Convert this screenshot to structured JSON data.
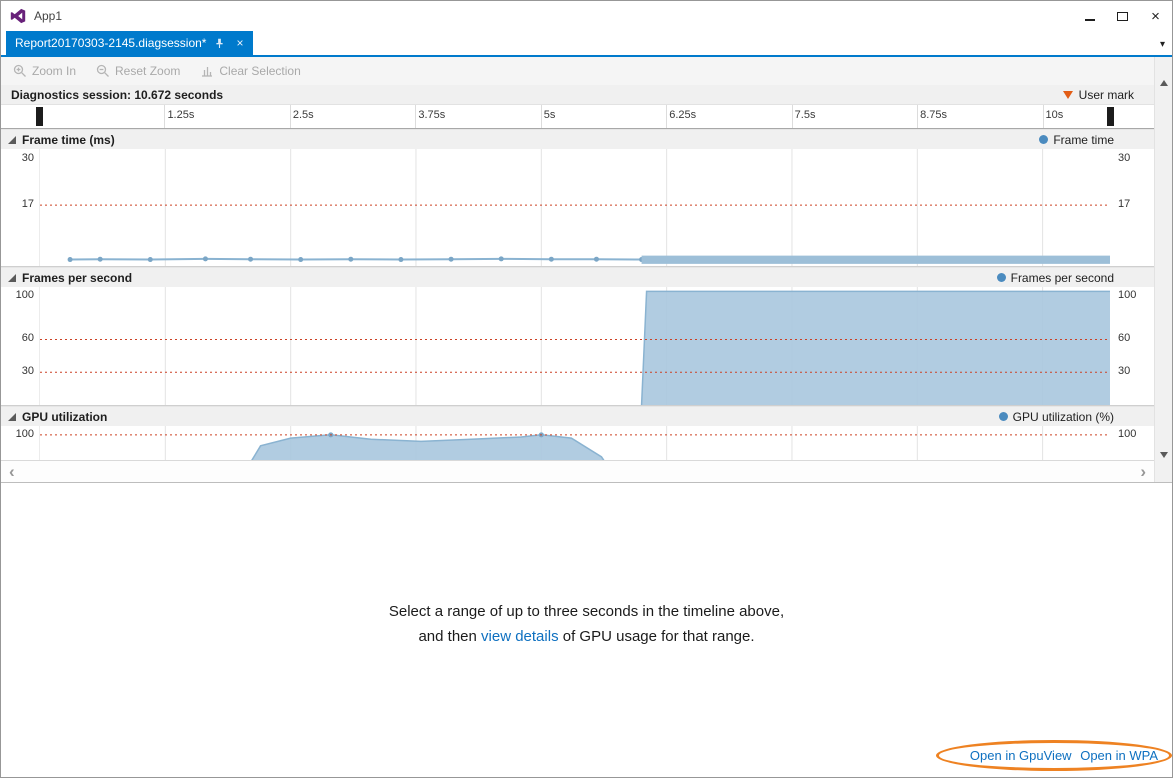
{
  "colors": {
    "tab": "#007acc",
    "link": "#0e70c0",
    "usermark": "#e25d16",
    "annotation": "#ee8222",
    "threshold": "#cc4125",
    "grid": "#e3e3e3",
    "legenddot": "#4b8bbf",
    "logo": "#68217a"
  },
  "window": {
    "title": "App1"
  },
  "tab": {
    "title": "Report20170303-2145.diagsession*"
  },
  "icons": {
    "close": "×",
    "tab_close": "×",
    "tab_dropdown": "▾",
    "scroll_left": "‹",
    "scroll_right": "›"
  },
  "toolbar": {
    "zoom_in": "Zoom In",
    "reset_zoom": "Reset Zoom",
    "clear_selection": "Clear Selection"
  },
  "timeline": {
    "session_label": "Diagnostics session: 10.672 seconds",
    "user_mark_label": "User mark",
    "x_max": 10.672,
    "ticks": [
      {
        "t": 1.25,
        "label": "1.25s"
      },
      {
        "t": 2.5,
        "label": "2.5s"
      },
      {
        "t": 3.75,
        "label": "3.75s"
      },
      {
        "t": 5,
        "label": "5s"
      },
      {
        "t": 6.25,
        "label": "6.25s"
      },
      {
        "t": 7.5,
        "label": "7.5s"
      },
      {
        "t": 8.75,
        "label": "8.75s"
      },
      {
        "t": 10,
        "label": "10s"
      }
    ],
    "session_markers": [
      0,
      10.672
    ]
  },
  "chart_data": [
    {
      "type": "line",
      "title": "Frame time (ms)",
      "legend": "Frame time",
      "ylim": [
        0,
        32.7
      ],
      "yticks": [
        {
          "v": 30,
          "label": "30"
        },
        {
          "v": 17,
          "label": "17"
        }
      ],
      "thresholds": [
        17
      ],
      "series": [
        {
          "name": "Frame time",
          "type": "line",
          "stroke": "#8ab3d1",
          "markers": true,
          "marker_fill": "#7ba6c6",
          "x": [
            0.3,
            0.6,
            1.1,
            1.65,
            2.1,
            2.6,
            3.1,
            3.6,
            4.1,
            4.6,
            5.1,
            5.55,
            6.0
          ],
          "y": [
            1.8,
            1.9,
            1.8,
            2.0,
            1.9,
            1.8,
            1.9,
            1.8,
            1.9,
            2.0,
            1.9,
            1.9,
            1.8
          ]
        },
        {
          "name": "Frame time (dense samples)",
          "type": "band",
          "fill": "#9dbfd8",
          "x0": 6.0,
          "x1": 10.672,
          "ymin": 0.6,
          "ymax": 2.9
        }
      ]
    },
    {
      "type": "area",
      "title": "Frames per second",
      "legend": "Frames per second",
      "ylim": [
        0,
        108
      ],
      "yticks": [
        {
          "v": 100,
          "label": "100"
        },
        {
          "v": 60,
          "label": "60"
        },
        {
          "v": 30,
          "label": "30"
        }
      ],
      "thresholds": [
        60,
        30
      ],
      "series": [
        {
          "name": "Frames per second",
          "type": "area",
          "fill": "#a8c7de",
          "stroke": "#8ab3d1",
          "x": [
            6.0,
            6.05,
            10.672
          ],
          "y": [
            0,
            104,
            104
          ]
        }
      ]
    },
    {
      "type": "area",
      "title": "GPU utilization",
      "legend": "GPU utilization (%)",
      "ylim": [
        0,
        108
      ],
      "yticks": [
        {
          "v": 100,
          "label": "100"
        }
      ],
      "thresholds": [
        100
      ],
      "series": [
        {
          "name": "GPU utilization (%)",
          "type": "area",
          "fill": "#a8c7de",
          "stroke": "#8ab3d1",
          "x": [
            1.8,
            2.0,
            2.2,
            2.5,
            2.9,
            3.3,
            3.8,
            4.3,
            4.8,
            5.0,
            5.3,
            5.6,
            5.9,
            6.1
          ],
          "y": [
            0,
            60,
            90,
            97,
            100,
            96,
            94,
            96,
            98,
            100,
            97,
            80,
            40,
            0
          ],
          "markers": true,
          "marker_x": [
            2.9,
            5.0
          ],
          "marker_y": [
            100,
            100
          ],
          "marker_fill": "#7ba6c6"
        }
      ]
    }
  ],
  "details": {
    "line1": "Select a range of up to three seconds in the timeline above,",
    "line2_prefix": "and then ",
    "line2_link": "view details",
    "line2_suffix": " of GPU usage for that range.",
    "open_gpuview": "Open in GpuView",
    "open_wpa": "Open in WPA"
  }
}
